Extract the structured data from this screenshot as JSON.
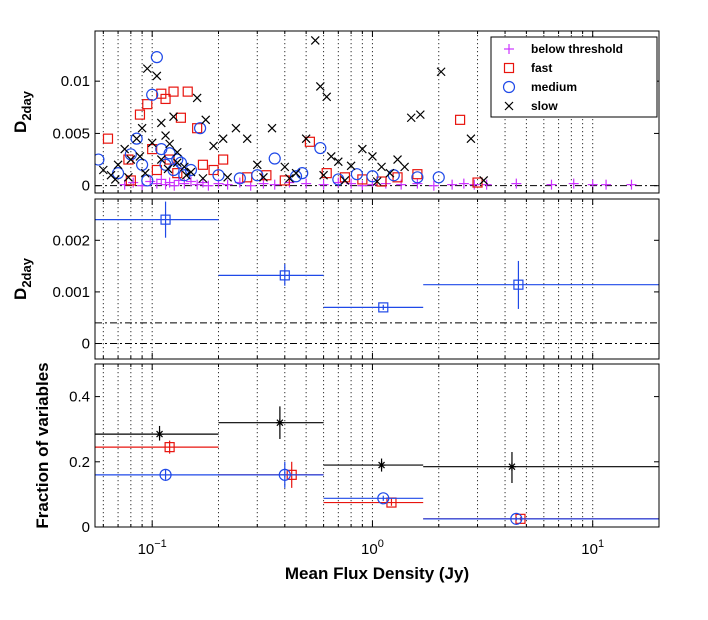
{
  "colors": {
    "below": "#cc33ff",
    "fast": "#e8140e",
    "medium": "#1f49e8",
    "slow": "#000000",
    "grid": "#333333"
  },
  "xaxis": {
    "label": "Mean Flux Density (Jy)",
    "xlim": [
      0.055,
      20
    ],
    "scale": "log",
    "ticks": [
      {
        "v": 0.1,
        "b": "10",
        "e": "−1"
      },
      {
        "v": 1,
        "b": "10",
        "e": "0"
      },
      {
        "v": 10,
        "b": "10",
        "e": "1"
      }
    ]
  },
  "chart_data": [
    {
      "type": "scatter",
      "title": "",
      "ylabel": "D",
      "ylabel_sub": "2day",
      "ylim": [
        -0.0007,
        0.0148
      ],
      "yticks": [
        {
          "v": 0,
          "t": "0"
        },
        {
          "v": 0.005,
          "t": "0.005"
        },
        {
          "v": 0.01,
          "t": "0.01"
        }
      ],
      "grid": "vertical-dotted",
      "legend_placement": "top-right",
      "hlines": [
        {
          "y": 0,
          "style": "dashdot"
        }
      ],
      "series": [
        {
          "name": "below threshold",
          "marker": "plus",
          "color": "#cc33ff",
          "points": [
            [
              0.075,
              0.0001
            ],
            [
              0.082,
              0.0003
            ],
            [
              0.09,
              0
            ],
            [
              0.098,
              0.0004
            ],
            [
              0.105,
              0.0002
            ],
            [
              0.11,
              0.0006
            ],
            [
              0.115,
              0.0001
            ],
            [
              0.12,
              0.0003
            ],
            [
              0.126,
              0
            ],
            [
              0.132,
              0.0005
            ],
            [
              0.14,
              0.0002
            ],
            [
              0.15,
              0.0004
            ],
            [
              0.16,
              0.0001
            ],
            [
              0.17,
              0.0003
            ],
            [
              0.18,
              0
            ],
            [
              0.2,
              0.0002
            ],
            [
              0.22,
              0.0001
            ],
            [
              0.25,
              0.0003
            ],
            [
              0.28,
              0
            ],
            [
              0.32,
              0.0002
            ],
            [
              0.36,
              0.0001
            ],
            [
              0.42,
              0.0003
            ],
            [
              0.5,
              0.0002
            ],
            [
              0.6,
              0.0001
            ],
            [
              0.7,
              0.0003
            ],
            [
              0.8,
              0.0002
            ],
            [
              0.9,
              0
            ],
            [
              1.0,
              0.0001
            ],
            [
              1.15,
              0.0002
            ],
            [
              1.35,
              0.0001
            ],
            [
              1.6,
              0.0002
            ],
            [
              1.9,
              0
            ],
            [
              2.3,
              0.0001
            ],
            [
              2.6,
              0.0002
            ],
            [
              2.9,
              0.0001
            ],
            [
              3.3,
              0.0001
            ],
            [
              4.5,
              0.0002
            ],
            [
              6.5,
              0.0001
            ],
            [
              8.2,
              0.0002
            ],
            [
              10.0,
              0.0001
            ],
            [
              11.5,
              0.0001
            ],
            [
              15.0,
              0.0001
            ]
          ]
        },
        {
          "name": "fast",
          "marker": "square",
          "color": "#e8140e",
          "points": [
            [
              0.063,
              0.0045
            ],
            [
              0.078,
              0.0025
            ],
            [
              0.088,
              0.0068
            ],
            [
              0.095,
              0.0078
            ],
            [
              0.1,
              0.0035
            ],
            [
              0.105,
              0.0015
            ],
            [
              0.11,
              0.0088
            ],
            [
              0.115,
              0.0083
            ],
            [
              0.12,
              0.0025
            ],
            [
              0.125,
              0.009
            ],
            [
              0.135,
              0.0065
            ],
            [
              0.145,
              0.009
            ],
            [
              0.16,
              0.0055
            ],
            [
              0.17,
              0.002
            ],
            [
              0.19,
              0.0015
            ],
            [
              0.21,
              0.0025
            ],
            [
              0.27,
              0.0008
            ],
            [
              0.33,
              0.001
            ],
            [
              0.4,
              0.0005
            ],
            [
              0.52,
              0.0042
            ],
            [
              0.62,
              0.0012
            ],
            [
              0.75,
              0.0008
            ],
            [
              0.9,
              0.0006
            ],
            [
              1.1,
              0.0004
            ],
            [
              1.3,
              0.0008
            ],
            [
              1.6,
              0.0011
            ],
            [
              2.5,
              0.0063
            ],
            [
              3.0,
              0.0003
            ],
            [
              0.08,
              0.0005
            ],
            [
              0.13,
              0.0012
            ]
          ]
        },
        {
          "name": "medium",
          "marker": "circle",
          "color": "#1f49e8",
          "points": [
            [
              0.057,
              0.0025
            ],
            [
              0.07,
              0.0012
            ],
            [
              0.08,
              0.003
            ],
            [
              0.085,
              0.0045
            ],
            [
              0.09,
              0.002
            ],
            [
              0.1,
              0.0087
            ],
            [
              0.105,
              0.0123
            ],
            [
              0.11,
              0.0035
            ],
            [
              0.115,
              0.002
            ],
            [
              0.12,
              0.0031
            ],
            [
              0.125,
              0.0015
            ],
            [
              0.13,
              0.0025
            ],
            [
              0.14,
              0.001
            ],
            [
              0.15,
              0.0015
            ],
            [
              0.165,
              0.0055
            ],
            [
              0.2,
              0.001
            ],
            [
              0.25,
              0.0007
            ],
            [
              0.3,
              0.001
            ],
            [
              0.36,
              0.0026
            ],
            [
              0.45,
              0.0009
            ],
            [
              0.58,
              0.0036
            ],
            [
              0.7,
              0.0006
            ],
            [
              0.85,
              0.0011
            ],
            [
              1.0,
              0.0009
            ],
            [
              1.25,
              0.001
            ],
            [
              1.6,
              0.0008
            ],
            [
              2.0,
              0.0008
            ],
            [
              0.095,
              0.0005
            ],
            [
              0.135,
              0.0022
            ],
            [
              0.48,
              0.0012
            ]
          ]
        },
        {
          "name": "slow",
          "marker": "x",
          "color": "#000000",
          "points": [
            [
              0.06,
              0.0015
            ],
            [
              0.065,
              0.001
            ],
            [
              0.07,
              0.002
            ],
            [
              0.075,
              0.0035
            ],
            [
              0.08,
              0.0025
            ],
            [
              0.085,
              0.0045
            ],
            [
              0.09,
              0.0055
            ],
            [
              0.095,
              0.0112
            ],
            [
              0.1,
              0.0041
            ],
            [
              0.105,
              0.0105
            ],
            [
              0.11,
              0.006
            ],
            [
              0.115,
              0.0048
            ],
            [
              0.12,
              0.004
            ],
            [
              0.125,
              0.0066
            ],
            [
              0.13,
              0.0022
            ],
            [
              0.14,
              0.0018
            ],
            [
              0.15,
              0.0013
            ],
            [
              0.16,
              0.0084
            ],
            [
              0.175,
              0.0063
            ],
            [
              0.19,
              0.0038
            ],
            [
              0.21,
              0.0045
            ],
            [
              0.24,
              0.0055
            ],
            [
              0.27,
              0.0045
            ],
            [
              0.3,
              0.002
            ],
            [
              0.35,
              0.0055
            ],
            [
              0.4,
              0.0018
            ],
            [
              0.45,
              0.0012
            ],
            [
              0.5,
              0.0045
            ],
            [
              0.55,
              0.0139
            ],
            [
              0.58,
              0.0095
            ],
            [
              0.62,
              0.0085
            ],
            [
              0.65,
              0.0028
            ],
            [
              0.7,
              0.0023
            ],
            [
              0.8,
              0.0019
            ],
            [
              0.9,
              0.0035
            ],
            [
              1.0,
              0.0028
            ],
            [
              1.1,
              0.0018
            ],
            [
              1.2,
              0.0012
            ],
            [
              1.3,
              0.0025
            ],
            [
              1.4,
              0.0018
            ],
            [
              1.5,
              0.0065
            ],
            [
              1.65,
              0.0068
            ],
            [
              2.05,
              0.0109
            ],
            [
              2.8,
              0.0045
            ],
            [
              3.2,
              0.0005
            ],
            [
              0.068,
              0.0006
            ],
            [
              0.078,
              0.0008
            ],
            [
              0.093,
              0.0012
            ],
            [
              0.118,
              0.0016
            ],
            [
              0.143,
              0.001
            ],
            [
              0.22,
              0.0008
            ],
            [
              0.32,
              0.0008
            ],
            [
              0.42,
              0.0007
            ],
            [
              0.75,
              0.0005
            ],
            [
              1.05,
              0.0004
            ],
            [
              0.088,
              0.0028
            ],
            [
              0.11,
              0.0025
            ],
            [
              0.13,
              0.0032
            ],
            [
              0.17,
              0.0007
            ],
            [
              0.6,
              0.001
            ]
          ]
        }
      ]
    },
    {
      "type": "errorbar",
      "title": "",
      "ylabel": "D",
      "ylabel_sub": "2day",
      "ylim": [
        -0.0003,
        0.0028
      ],
      "yticks": [
        {
          "v": 0,
          "t": "0"
        },
        {
          "v": 0.001,
          "t": "0.001"
        },
        {
          "v": 0.002,
          "t": "0.002"
        }
      ],
      "grid": "vertical-dotted",
      "hlines": [
        {
          "y": 0,
          "style": "dashdot"
        },
        {
          "y": 0.0004,
          "style": "dashdot"
        }
      ],
      "series": [
        {
          "name": "",
          "marker": "square",
          "color": "#1f49e8",
          "points": [
            {
              "x": 0.115,
              "y": 0.0024,
              "xlo": 0.055,
              "xhi": 0.2,
              "ylo": 0.00205,
              "yhi": 0.00275
            },
            {
              "x": 0.4,
              "y": 0.00132,
              "xlo": 0.2,
              "xhi": 0.6,
              "ylo": 0.00112,
              "yhi": 0.00154
            },
            {
              "x": 1.12,
              "y": 0.0007,
              "xlo": 0.6,
              "xhi": 1.7,
              "ylo": 0.00065,
              "yhi": 0.00075
            },
            {
              "x": 4.6,
              "y": 0.00114,
              "xlo": 1.7,
              "xhi": 20,
              "ylo": 0.00067,
              "yhi": 0.0016
            }
          ]
        }
      ]
    },
    {
      "type": "errorbar",
      "title": "",
      "ylabel": "Fraction of variables",
      "ylim": [
        0,
        0.5
      ],
      "yticks": [
        {
          "v": 0,
          "t": "0"
        },
        {
          "v": 0.2,
          "t": "0.2"
        },
        {
          "v": 0.4,
          "t": "0.4"
        }
      ],
      "grid": "vertical-dotted",
      "series": [
        {
          "name": "",
          "marker": "star",
          "color": "#000000",
          "points": [
            {
              "x": 0.108,
              "y": 0.285,
              "xlo": 0.055,
              "xhi": 0.2,
              "ylo": 0.265,
              "yhi": 0.31
            },
            {
              "x": 0.38,
              "y": 0.32,
              "xlo": 0.2,
              "xhi": 0.6,
              "ylo": 0.27,
              "yhi": 0.37
            },
            {
              "x": 1.1,
              "y": 0.19,
              "xlo": 0.6,
              "xhi": 1.7,
              "ylo": 0.17,
              "yhi": 0.21
            },
            {
              "x": 4.3,
              "y": 0.185,
              "xlo": 1.7,
              "xhi": 20,
              "ylo": 0.135,
              "yhi": 0.23
            }
          ]
        },
        {
          "name": "",
          "marker": "square",
          "color": "#e8140e",
          "points": [
            {
              "x": 0.12,
              "y": 0.245,
              "xlo": 0.055,
              "xhi": 0.2,
              "ylo": 0.225,
              "yhi": 0.265
            },
            {
              "x": 0.43,
              "y": 0.16,
              "xlo": 0.2,
              "xhi": 0.6,
              "ylo": 0.12,
              "yhi": 0.2
            },
            {
              "x": 1.22,
              "y": 0.075,
              "xlo": 0.6,
              "xhi": 1.7,
              "ylo": 0.065,
              "yhi": 0.09
            },
            {
              "x": 4.7,
              "y": 0.025,
              "xlo": 1.7,
              "xhi": 20,
              "ylo": 0.02,
              "yhi": 0.03
            }
          ]
        },
        {
          "name": "",
          "marker": "circle",
          "color": "#1f49e8",
          "points": [
            {
              "x": 0.115,
              "y": 0.16,
              "xlo": 0.055,
              "xhi": 0.2,
              "ylo": 0.145,
              "yhi": 0.175
            },
            {
              "x": 0.4,
              "y": 0.16,
              "xlo": 0.2,
              "xhi": 0.6,
              "ylo": 0.12,
              "yhi": 0.2
            },
            {
              "x": 1.12,
              "y": 0.088,
              "xlo": 0.6,
              "xhi": 1.7,
              "ylo": 0.08,
              "yhi": 0.096
            },
            {
              "x": 4.5,
              "y": 0.025,
              "xlo": 1.7,
              "xhi": 20,
              "ylo": 0.02,
              "yhi": 0.03
            }
          ]
        }
      ]
    }
  ]
}
